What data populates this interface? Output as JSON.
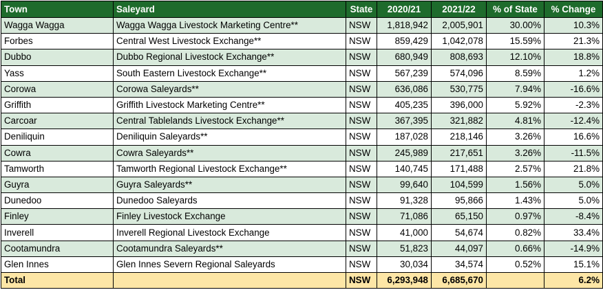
{
  "headers": {
    "town": "Town",
    "saleyard": "Saleyard",
    "state": "State",
    "y2021": "2020/21",
    "y2122": "2021/22",
    "pct_state": "% of State",
    "pct_change": "% Change"
  },
  "rows": [
    {
      "town": "Wagga Wagga",
      "saleyard": "Wagga Wagga Livestock Marketing Centre**",
      "state": "NSW",
      "y2021": "1,818,942",
      "y2122": "2,005,901",
      "pct_state": "30.00%",
      "pct_change": "10.3%"
    },
    {
      "town": "Forbes",
      "saleyard": "Central West Livestock Exchange**",
      "state": "NSW",
      "y2021": "859,429",
      "y2122": "1,042,078",
      "pct_state": "15.59%",
      "pct_change": "21.3%"
    },
    {
      "town": "Dubbo",
      "saleyard": "Dubbo Regional Livestock Exchange**",
      "state": "NSW",
      "y2021": "680,949",
      "y2122": "808,693",
      "pct_state": "12.10%",
      "pct_change": "18.8%"
    },
    {
      "town": "Yass",
      "saleyard": "South Eastern Livestock Exchange**",
      "state": "NSW",
      "y2021": "567,239",
      "y2122": "574,096",
      "pct_state": "8.59%",
      "pct_change": "1.2%"
    },
    {
      "town": "Corowa",
      "saleyard": "Corowa Saleyards**",
      "state": "NSW",
      "y2021": "636,086",
      "y2122": "530,775",
      "pct_state": "7.94%",
      "pct_change": "-16.6%"
    },
    {
      "town": "Griffith",
      "saleyard": "Griffith Livestock Marketing Centre**",
      "state": "NSW",
      "y2021": "405,235",
      "y2122": "396,000",
      "pct_state": "5.92%",
      "pct_change": "-2.3%"
    },
    {
      "town": "Carcoar",
      "saleyard": "Central Tablelands Livestock Exchange**",
      "state": "NSW",
      "y2021": "367,395",
      "y2122": "321,882",
      "pct_state": "4.81%",
      "pct_change": "-12.4%"
    },
    {
      "town": "Deniliquin",
      "saleyard": "Deniliquin Saleyards**",
      "state": "NSW",
      "y2021": "187,028",
      "y2122": "218,146",
      "pct_state": "3.26%",
      "pct_change": "16.6%"
    },
    {
      "town": "Cowra",
      "saleyard": "Cowra Saleyards**",
      "state": "NSW",
      "y2021": "245,989",
      "y2122": "217,651",
      "pct_state": "3.26%",
      "pct_change": "-11.5%"
    },
    {
      "town": "Tamworth",
      "saleyard": "Tamworth Regional Livestock Exchange**",
      "state": "NSW",
      "y2021": "140,745",
      "y2122": "171,488",
      "pct_state": "2.57%",
      "pct_change": "21.8%"
    },
    {
      "town": "Guyra",
      "saleyard": "Guyra Saleyards**",
      "state": "NSW",
      "y2021": "99,640",
      "y2122": "104,599",
      "pct_state": "1.56%",
      "pct_change": "5.0%"
    },
    {
      "town": "Dunedoo",
      "saleyard": "Dunedoo Saleyards",
      "state": "NSW",
      "y2021": "91,328",
      "y2122": "95,866",
      "pct_state": "1.43%",
      "pct_change": "5.0%"
    },
    {
      "town": "Finley",
      "saleyard": "Finley Livestock Exchange",
      "state": "NSW",
      "y2021": "71,086",
      "y2122": "65,150",
      "pct_state": "0.97%",
      "pct_change": "-8.4%"
    },
    {
      "town": "Inverell",
      "saleyard": "Inverell Regional Livestock Exchange",
      "state": "NSW",
      "y2021": "41,000",
      "y2122": "54,674",
      "pct_state": "0.82%",
      "pct_change": "33.4%"
    },
    {
      "town": "Cootamundra",
      "saleyard": "Cootamundra Saleyards**",
      "state": "NSW",
      "y2021": "51,823",
      "y2122": "44,097",
      "pct_state": "0.66%",
      "pct_change": "-14.9%"
    },
    {
      "town": "Glen Innes",
      "saleyard": "Glen Innes Severn Regional Saleyards",
      "state": "NSW",
      "y2021": "30,034",
      "y2122": "34,574",
      "pct_state": "0.52%",
      "pct_change": "15.1%"
    }
  ],
  "total": {
    "town": "Total",
    "saleyard": "",
    "state": "NSW",
    "y2021": "6,293,948",
    "y2122": "6,685,670",
    "pct_state": "",
    "pct_change": "6.2%"
  },
  "colors": {
    "header_bg": "#1e6b2c",
    "shade_row_bg": "#d9eadc",
    "total_bg": "#fde6a6"
  }
}
